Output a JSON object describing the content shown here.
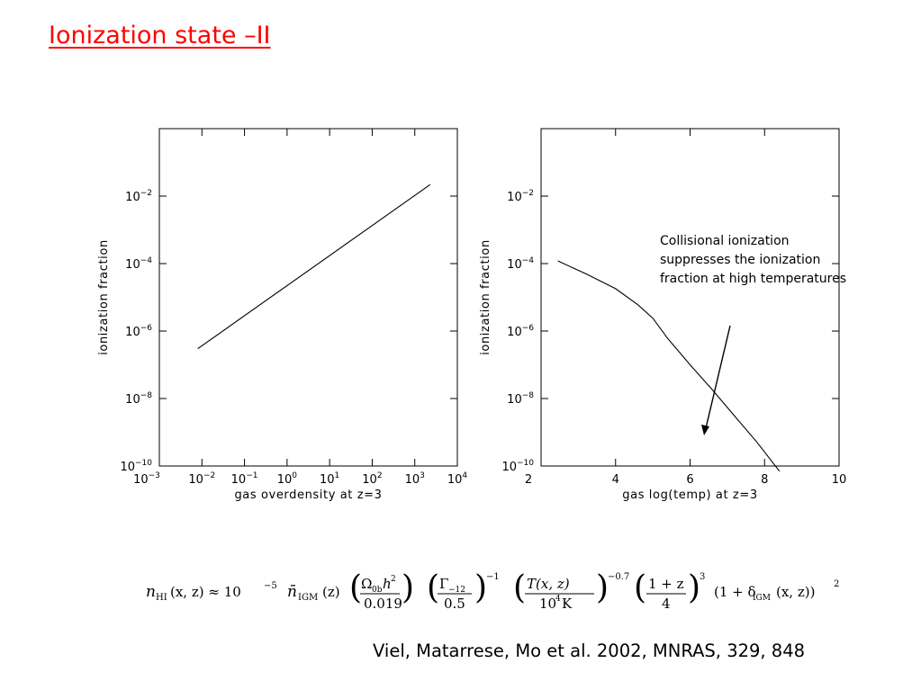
{
  "slide": {
    "title": "Ionization state –II",
    "citation": "Viel, Matarrese, Mo et al. 2002, MNRAS, 329, 848",
    "annotation_lines": [
      "Collisional ionization",
      "suppresses the ionization",
      "fraction at high temperatures"
    ],
    "equation": {
      "lhs": "n",
      "lhs_sub": "HI",
      "lhs_args": "(x, z) ≈ 10",
      "pow": "−5",
      "nbar": "n̄",
      "nbar_sub": "IGM",
      "nbar_args": "(z)",
      "f1_num": "Ω",
      "f1_num_sub": "0b",
      "f1_num_h": "h",
      "f1_num_pow": "2",
      "f1_den": "0.019",
      "f2_num": "Γ",
      "f2_num_sub": "−12",
      "f2_den": "0.5",
      "f2_pow": "−1",
      "f3_num": "T(x, z)",
      "f3_den": "10",
      "f3_den_pow": "4",
      "f3_den_unit": "K",
      "f3_pow": "−0.7",
      "f4_num": "1 + z",
      "f4_den": "4",
      "f4_pow": "3",
      "tail": "(1 + δ",
      "tail_sub": "IGM",
      "tail_args": "(x, z))",
      "tail_pow": "2"
    }
  },
  "chart_data": [
    {
      "type": "line",
      "title": "",
      "xlabel": "gas overdensity at z=3",
      "ylabel": "ionization fraction",
      "xscale": "log",
      "yscale": "log",
      "xlim": [
        0.001,
        10000
      ],
      "ylim": [
        1e-10,
        1
      ],
      "x_ticks": [
        {
          "value": 0.001,
          "base": "10",
          "exp": "−3"
        },
        {
          "value": 0.01,
          "base": "10",
          "exp": "−2"
        },
        {
          "value": 0.1,
          "base": "10",
          "exp": "−1"
        },
        {
          "value": 1,
          "base": "10",
          "exp": "0"
        },
        {
          "value": 10,
          "base": "10",
          "exp": "1"
        },
        {
          "value": 100,
          "base": "10",
          "exp": "2"
        },
        {
          "value": 1000,
          "base": "10",
          "exp": "3"
        },
        {
          "value": 10000,
          "base": "10",
          "exp": "4"
        }
      ],
      "y_ticks": [
        {
          "value": 1e-10,
          "base": "10",
          "exp": "−10"
        },
        {
          "value": 1e-08,
          "base": "10",
          "exp": "−8"
        },
        {
          "value": 1e-06,
          "base": "10",
          "exp": "−6"
        },
        {
          "value": 0.0001,
          "base": "10",
          "exp": "−4"
        },
        {
          "value": 0.01,
          "base": "10",
          "exp": "−2"
        }
      ],
      "series": [
        {
          "x": [
            0.008,
            2300
          ],
          "y": [
            3e-07,
            0.022
          ]
        }
      ],
      "grid": false
    },
    {
      "type": "line",
      "title": "",
      "xlabel": "gas log(temp) at z=3",
      "ylabel": "ionization fraction",
      "xscale": "linear",
      "yscale": "log",
      "xlim": [
        2,
        10
      ],
      "ylim": [
        1e-10,
        1
      ],
      "x_ticks": [
        {
          "value": 2,
          "base": "2",
          "exp": ""
        },
        {
          "value": 4,
          "base": "4",
          "exp": ""
        },
        {
          "value": 6,
          "base": "6",
          "exp": ""
        },
        {
          "value": 8,
          "base": "8",
          "exp": ""
        },
        {
          "value": 10,
          "base": "10",
          "exp": ""
        }
      ],
      "y_ticks": [
        {
          "value": 1e-10,
          "base": "10",
          "exp": "−10"
        },
        {
          "value": 1e-08,
          "base": "10",
          "exp": "−8"
        },
        {
          "value": 1e-06,
          "base": "10",
          "exp": "−6"
        },
        {
          "value": 0.0001,
          "base": "10",
          "exp": "−4"
        },
        {
          "value": 0.01,
          "base": "10",
          "exp": "−2"
        }
      ],
      "series": [
        {
          "x": [
            2.45,
            3.2,
            4.0,
            4.6,
            5.0,
            5.4,
            6.0,
            6.6,
            7.2,
            7.8,
            8.4
          ],
          "y": [
            0.00012,
            5e-05,
            1.8e-05,
            6e-06,
            2.4e-06,
            6e-07,
            1e-07,
            1.8e-08,
            3e-09,
            5e-10,
            7e-11
          ]
        }
      ],
      "grid": false
    }
  ]
}
